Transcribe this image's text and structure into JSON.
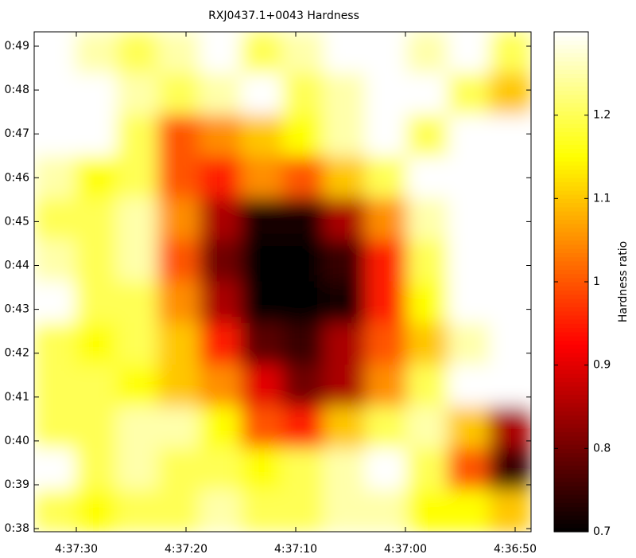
{
  "chart_data": {
    "type": "heatmap",
    "title": "RXJ0437.1+0043 Hardness",
    "colorbar_label": "Hardness ratio",
    "colormap": "hot",
    "clim": [
      0.7,
      1.3
    ],
    "cticks": [
      0.7,
      0.8,
      0.9,
      1,
      1.1,
      1.2
    ],
    "x_tick_labels": [
      "4:37:30",
      "4:37:20",
      "4:37:10",
      "4:37:00",
      "4:36:50"
    ],
    "y_tick_labels": [
      "0:49",
      "0:48",
      "0:47",
      "0:46",
      "0:45",
      "0:44",
      "0:43",
      "0:42",
      "0:41",
      "0:40",
      "0:39",
      "0:38"
    ],
    "z": [
      [
        1.3,
        1.25,
        1.2,
        1.25,
        1.3,
        1.2,
        1.25,
        1.3,
        1.3,
        1.25,
        1.3,
        1.2
      ],
      [
        1.3,
        1.3,
        1.25,
        1.2,
        1.25,
        1.3,
        1.2,
        1.25,
        1.3,
        1.3,
        1.2,
        1.1
      ],
      [
        1.3,
        1.3,
        1.2,
        1.0,
        1.05,
        1.1,
        1.15,
        1.25,
        1.3,
        1.2,
        1.3,
        1.3
      ],
      [
        1.25,
        1.15,
        1.2,
        1.0,
        0.95,
        1.05,
        1.0,
        1.1,
        1.2,
        1.3,
        1.3,
        1.3
      ],
      [
        1.2,
        1.2,
        1.25,
        1.05,
        0.85,
        0.72,
        0.72,
        0.85,
        1.05,
        1.25,
        1.3,
        1.3
      ],
      [
        1.25,
        1.2,
        1.25,
        1.0,
        0.8,
        0.7,
        0.7,
        0.75,
        0.95,
        1.2,
        1.3,
        1.3
      ],
      [
        1.3,
        1.2,
        1.2,
        1.05,
        0.85,
        0.7,
        0.7,
        0.72,
        0.95,
        1.15,
        1.3,
        1.3
      ],
      [
        1.2,
        1.15,
        1.2,
        1.1,
        0.95,
        0.78,
        0.75,
        0.85,
        1.0,
        1.1,
        1.25,
        1.3
      ],
      [
        1.2,
        1.2,
        1.15,
        1.1,
        1.05,
        0.9,
        0.8,
        0.85,
        1.05,
        1.2,
        1.3,
        1.3
      ],
      [
        1.2,
        1.2,
        1.25,
        1.25,
        1.15,
        1.0,
        0.95,
        1.1,
        1.2,
        1.25,
        1.1,
        0.85
      ],
      [
        1.3,
        1.2,
        1.25,
        1.2,
        1.2,
        1.15,
        1.2,
        1.25,
        1.3,
        1.2,
        1.0,
        0.75
      ],
      [
        1.2,
        1.15,
        1.2,
        1.2,
        1.25,
        1.2,
        1.2,
        1.25,
        1.25,
        1.15,
        1.15,
        1.1
      ]
    ]
  }
}
